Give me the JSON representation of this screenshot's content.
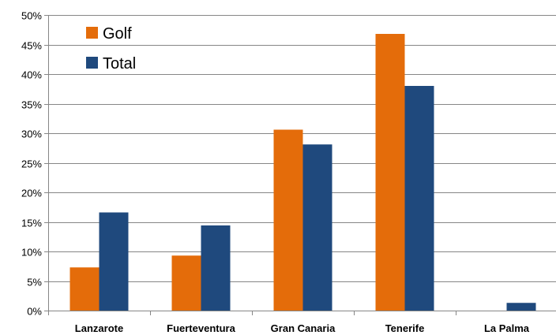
{
  "chart_data": {
    "type": "bar",
    "title": "",
    "xlabel": "",
    "ylabel": "",
    "categories": [
      "Lanzarote",
      "Fuerteventura",
      "Gran Canaria",
      "Tenerife",
      "La Palma"
    ],
    "series": [
      {
        "name": "Golf",
        "color": "#E46C0A",
        "values": [
          7.3,
          9.3,
          30.6,
          46.8,
          0
        ]
      },
      {
        "name": "Total",
        "color": "#1F497D",
        "values": [
          16.6,
          14.4,
          28.1,
          38.0,
          1.3
        ]
      }
    ],
    "ylim": [
      0,
      50
    ],
    "yticks": [
      0,
      5,
      10,
      15,
      20,
      25,
      30,
      35,
      40,
      45,
      50
    ],
    "ytick_labels": [
      "0%",
      "5%",
      "10%",
      "15%",
      "20%",
      "25%",
      "30%",
      "35%",
      "40%",
      "45%",
      "50%"
    ],
    "grid": true,
    "legend_position": "top-left"
  }
}
